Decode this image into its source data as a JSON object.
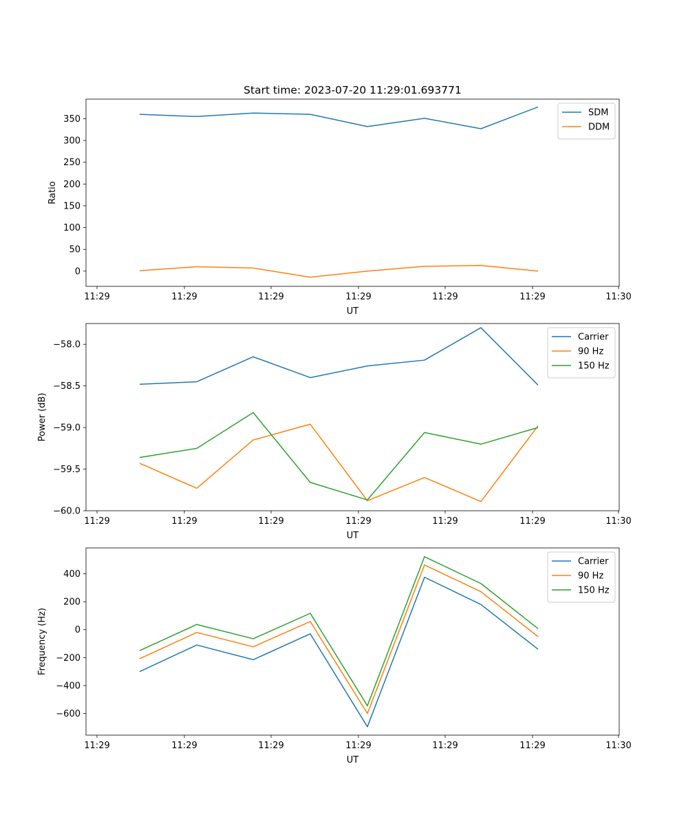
{
  "chart_data": [
    {
      "type": "line",
      "title": "Start time: 2023-07-20 11:29:01.693771",
      "xlabel": "UT",
      "ylabel": "Ratio",
      "x_tick_labels": [
        "11:29",
        "11:29",
        "11:29",
        "11:29",
        "11:29",
        "11:29",
        "11:29",
        "11:30"
      ],
      "ylim": [
        -35,
        395
      ],
      "y_ticks": [
        0,
        50,
        100,
        150,
        200,
        250,
        300,
        350
      ],
      "legend_position": "top-right",
      "series": [
        {
          "name": "SDM",
          "color": "#1f77b4",
          "values": [
            360,
            355,
            363,
            360,
            332,
            351,
            327,
            377
          ]
        },
        {
          "name": "DDM",
          "color": "#ff7f0e",
          "values": [
            1,
            10,
            7,
            -14,
            0,
            11,
            13,
            0
          ]
        }
      ]
    },
    {
      "type": "line",
      "title": "",
      "xlabel": "UT",
      "ylabel": "Power (dB)",
      "x_tick_labels": [
        "11:29",
        "11:29",
        "11:29",
        "11:29",
        "11:29",
        "11:29",
        "11:29",
        "11:30"
      ],
      "ylim": [
        -60.0,
        -57.75
      ],
      "y_ticks": [
        -60.0,
        -59.5,
        -59.0,
        -58.5,
        -58.0
      ],
      "y_tick_labels": [
        "−60.0",
        "−59.5",
        "−59.0",
        "−58.5",
        "−58.0"
      ],
      "legend_position": "top-right",
      "series": [
        {
          "name": "Carrier",
          "color": "#1f77b4",
          "values": [
            -58.48,
            -58.45,
            -58.15,
            -58.4,
            -58.26,
            -58.19,
            -57.8,
            -58.49
          ]
        },
        {
          "name": "90 Hz",
          "color": "#ff7f0e",
          "values": [
            -59.43,
            -59.73,
            -59.15,
            -58.96,
            -59.88,
            -59.6,
            -59.89,
            -58.98
          ]
        },
        {
          "name": "150 Hz",
          "color": "#2ca02c",
          "values": [
            -59.36,
            -59.25,
            -58.82,
            -59.66,
            -59.87,
            -59.06,
            -59.2,
            -59.0
          ]
        }
      ]
    },
    {
      "type": "line",
      "title": "",
      "xlabel": "UT",
      "ylabel": "Frequency (Hz)",
      "x_tick_labels": [
        "11:29",
        "11:29",
        "11:29",
        "11:29",
        "11:29",
        "11:29",
        "11:29",
        "11:30"
      ],
      "ylim": [
        -755,
        585
      ],
      "y_ticks": [
        -600,
        -400,
        -200,
        0,
        200,
        400
      ],
      "y_tick_labels": [
        "−600",
        "−400",
        "−200",
        "0",
        "200",
        "400"
      ],
      "legend_position": "top-right",
      "series": [
        {
          "name": "Carrier",
          "color": "#1f77b4",
          "values": [
            -300,
            -110,
            -215,
            -30,
            -695,
            375,
            180,
            -140
          ]
        },
        {
          "name": "90 Hz",
          "color": "#ff7f0e",
          "values": [
            -208,
            -20,
            -123,
            58,
            -600,
            463,
            272,
            -50
          ]
        },
        {
          "name": "150 Hz",
          "color": "#2ca02c",
          "values": [
            -150,
            37,
            -65,
            117,
            -545,
            522,
            330,
            7
          ]
        }
      ]
    }
  ]
}
